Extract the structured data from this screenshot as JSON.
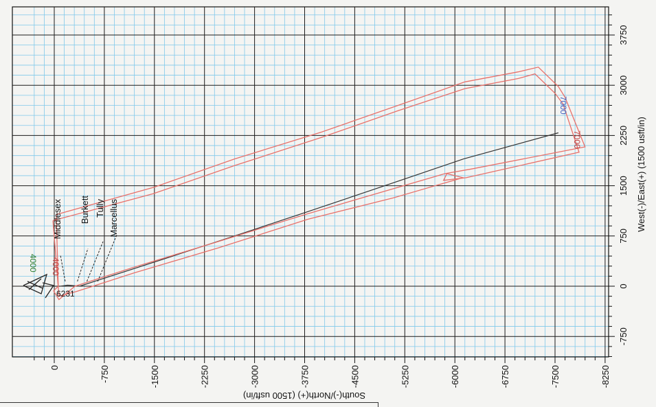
{
  "chart_data": {
    "type": "line",
    "title": "",
    "xlabel": "West(-)/East(+) (1500 usft/in)",
    "ylabel": "South(-)/North(+) (1500 usft/in)",
    "xlim": [
      -1000,
      4000
    ],
    "ylim": [
      -8250,
      400
    ],
    "grid": true,
    "x_ticks": [
      "-750",
      "0",
      "750",
      "1500",
      "2250",
      "3000",
      "3750"
    ],
    "x_tick_values": [
      -750,
      0,
      750,
      1500,
      2250,
      3000,
      3750
    ],
    "y_ticks": [
      "0",
      "-750",
      "-1500",
      "-2250",
      "-3000",
      "-3750",
      "-4500",
      "-5250",
      "-6000",
      "-6750",
      "-7500",
      "-8250"
    ],
    "y_tick_values": [
      0,
      -750,
      -1500,
      -2250,
      -3000,
      -3750,
      -4500,
      -5250,
      -6000,
      -6750,
      -7500,
      -8250
    ],
    "series": [
      {
        "name": "",
        "color": "#333333",
        "points": [
          [
            0,
            0
          ],
          [
            0,
            -90
          ],
          [
            8,
            -150
          ],
          [
            15,
            -200
          ],
          [
            0,
            -380
          ],
          [
            380,
            -1560
          ],
          [
            750,
            -2700
          ],
          [
            1100,
            -3760
          ],
          [
            1500,
            -4950
          ],
          [
            1900,
            -6130
          ],
          [
            2290,
            -7550
          ]
        ]
      },
      {
        "name": "",
        "color": "#e8706a",
        "points": [
          [
            1070,
            -30
          ],
          [
            1480,
            -1500
          ],
          [
            1900,
            -2700
          ],
          [
            2300,
            -4000
          ],
          [
            2700,
            -5150
          ],
          [
            3050,
            -6150
          ],
          [
            3200,
            -6950
          ],
          [
            3270,
            -7250
          ],
          [
            2980,
            -7550
          ],
          [
            2820,
            -7650
          ],
          [
            2080,
            -7950
          ],
          [
            1750,
            -6250
          ],
          [
            1680,
            -5850
          ],
          [
            1080,
            -3790
          ],
          [
            650,
            -2400
          ],
          [
            280,
            -1180
          ],
          [
            0,
            -310
          ],
          [
            -200,
            -70
          ],
          [
            -70,
            10
          ],
          [
            0,
            -60
          ],
          [
            1070,
            -30
          ]
        ]
      },
      {
        "name": "",
        "color": "#e8706a",
        "points": [
          [
            980,
            20
          ],
          [
            1380,
            -1480
          ],
          [
            1800,
            -2700
          ],
          [
            2220,
            -4000
          ],
          [
            2620,
            -5150
          ],
          [
            2950,
            -6150
          ],
          [
            3100,
            -6950
          ],
          [
            3170,
            -7200
          ],
          [
            2880,
            -7500
          ],
          [
            2720,
            -7620
          ],
          [
            2000,
            -7860
          ],
          [
            1620,
            -6170
          ],
          [
            1580,
            -5830
          ],
          [
            1680,
            -5880
          ],
          [
            1620,
            -6120
          ],
          [
            1320,
            -5080
          ],
          [
            1000,
            -3800
          ],
          [
            570,
            -2450
          ],
          [
            200,
            -1200
          ],
          [
            -80,
            -330
          ],
          [
            -150,
            -70
          ],
          [
            980,
            20
          ]
        ]
      }
    ],
    "formations": [
      {
        "name": "Middlesex",
        "point": [
          0,
          -20
        ]
      },
      {
        "name": "Burkett",
        "point": [
          0,
          -120
        ]
      },
      {
        "name": "Tully",
        "point": [
          0,
          -180
        ]
      },
      {
        "name": "Marcellus",
        "point": [
          0,
          -260
        ]
      }
    ],
    "annotations": [
      {
        "text": "4000",
        "color": "#c04040",
        "point": [
          330,
          -40
        ]
      },
      {
        "text": "4000",
        "color": "#2f7d2f",
        "point": [
          230,
          150
        ]
      },
      {
        "text": "7000",
        "color": "#4060c0",
        "point": [
          2800,
          -7600
        ]
      },
      {
        "text": "7000",
        "color": "#c04040",
        "point": [
          2200,
          -7780
        ]
      },
      {
        "text": "6231",
        "color": "#111111",
        "point": [
          -30,
          -90
        ]
      }
    ]
  }
}
